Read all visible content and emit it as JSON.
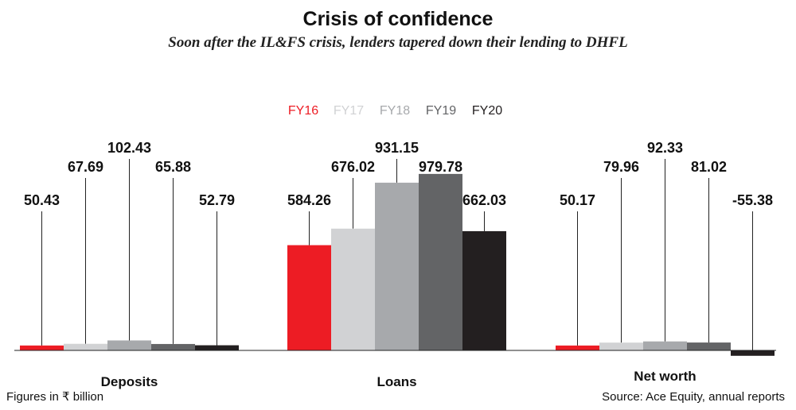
{
  "chart_data": {
    "type": "bar",
    "title": "Crisis of confidence",
    "subtitle": "Soon after the IL&FS crisis, lenders tapered down their lending to DHFL",
    "categories": [
      "Deposits",
      "Loans",
      "Net worth"
    ],
    "series": [
      {
        "name": "FY16",
        "color": "#ed1c24",
        "values": [
          50.43,
          584.26,
          50.17
        ]
      },
      {
        "name": "FY17",
        "color": "#d1d2d4",
        "values": [
          67.69,
          676.02,
          79.96
        ]
      },
      {
        "name": "FY18",
        "color": "#a7a9ac",
        "values": [
          102.43,
          931.15,
          92.33
        ]
      },
      {
        "name": "FY19",
        "color": "#636466",
        "values": [
          65.88,
          979.78,
          81.02
        ]
      },
      {
        "name": "FY20",
        "color": "#231f20",
        "values": [
          52.79,
          662.03,
          -55.38
        ]
      }
    ],
    "value_labels": [
      [
        "50.43",
        "67.69",
        "102.43",
        "65.88",
        "52.79"
      ],
      [
        "584.26",
        "676.02",
        "931.15",
        "979.78",
        "662.03"
      ],
      [
        "50.17",
        "79.96",
        "92.33",
        "81.02",
        "-55.38"
      ]
    ],
    "legend_position": "top-center",
    "grid": false,
    "ylim": [
      -60,
      1000
    ],
    "footnote_left": "Figures in ₹ billion",
    "footnote_right": "Source: Ace Equity, annual reports"
  }
}
